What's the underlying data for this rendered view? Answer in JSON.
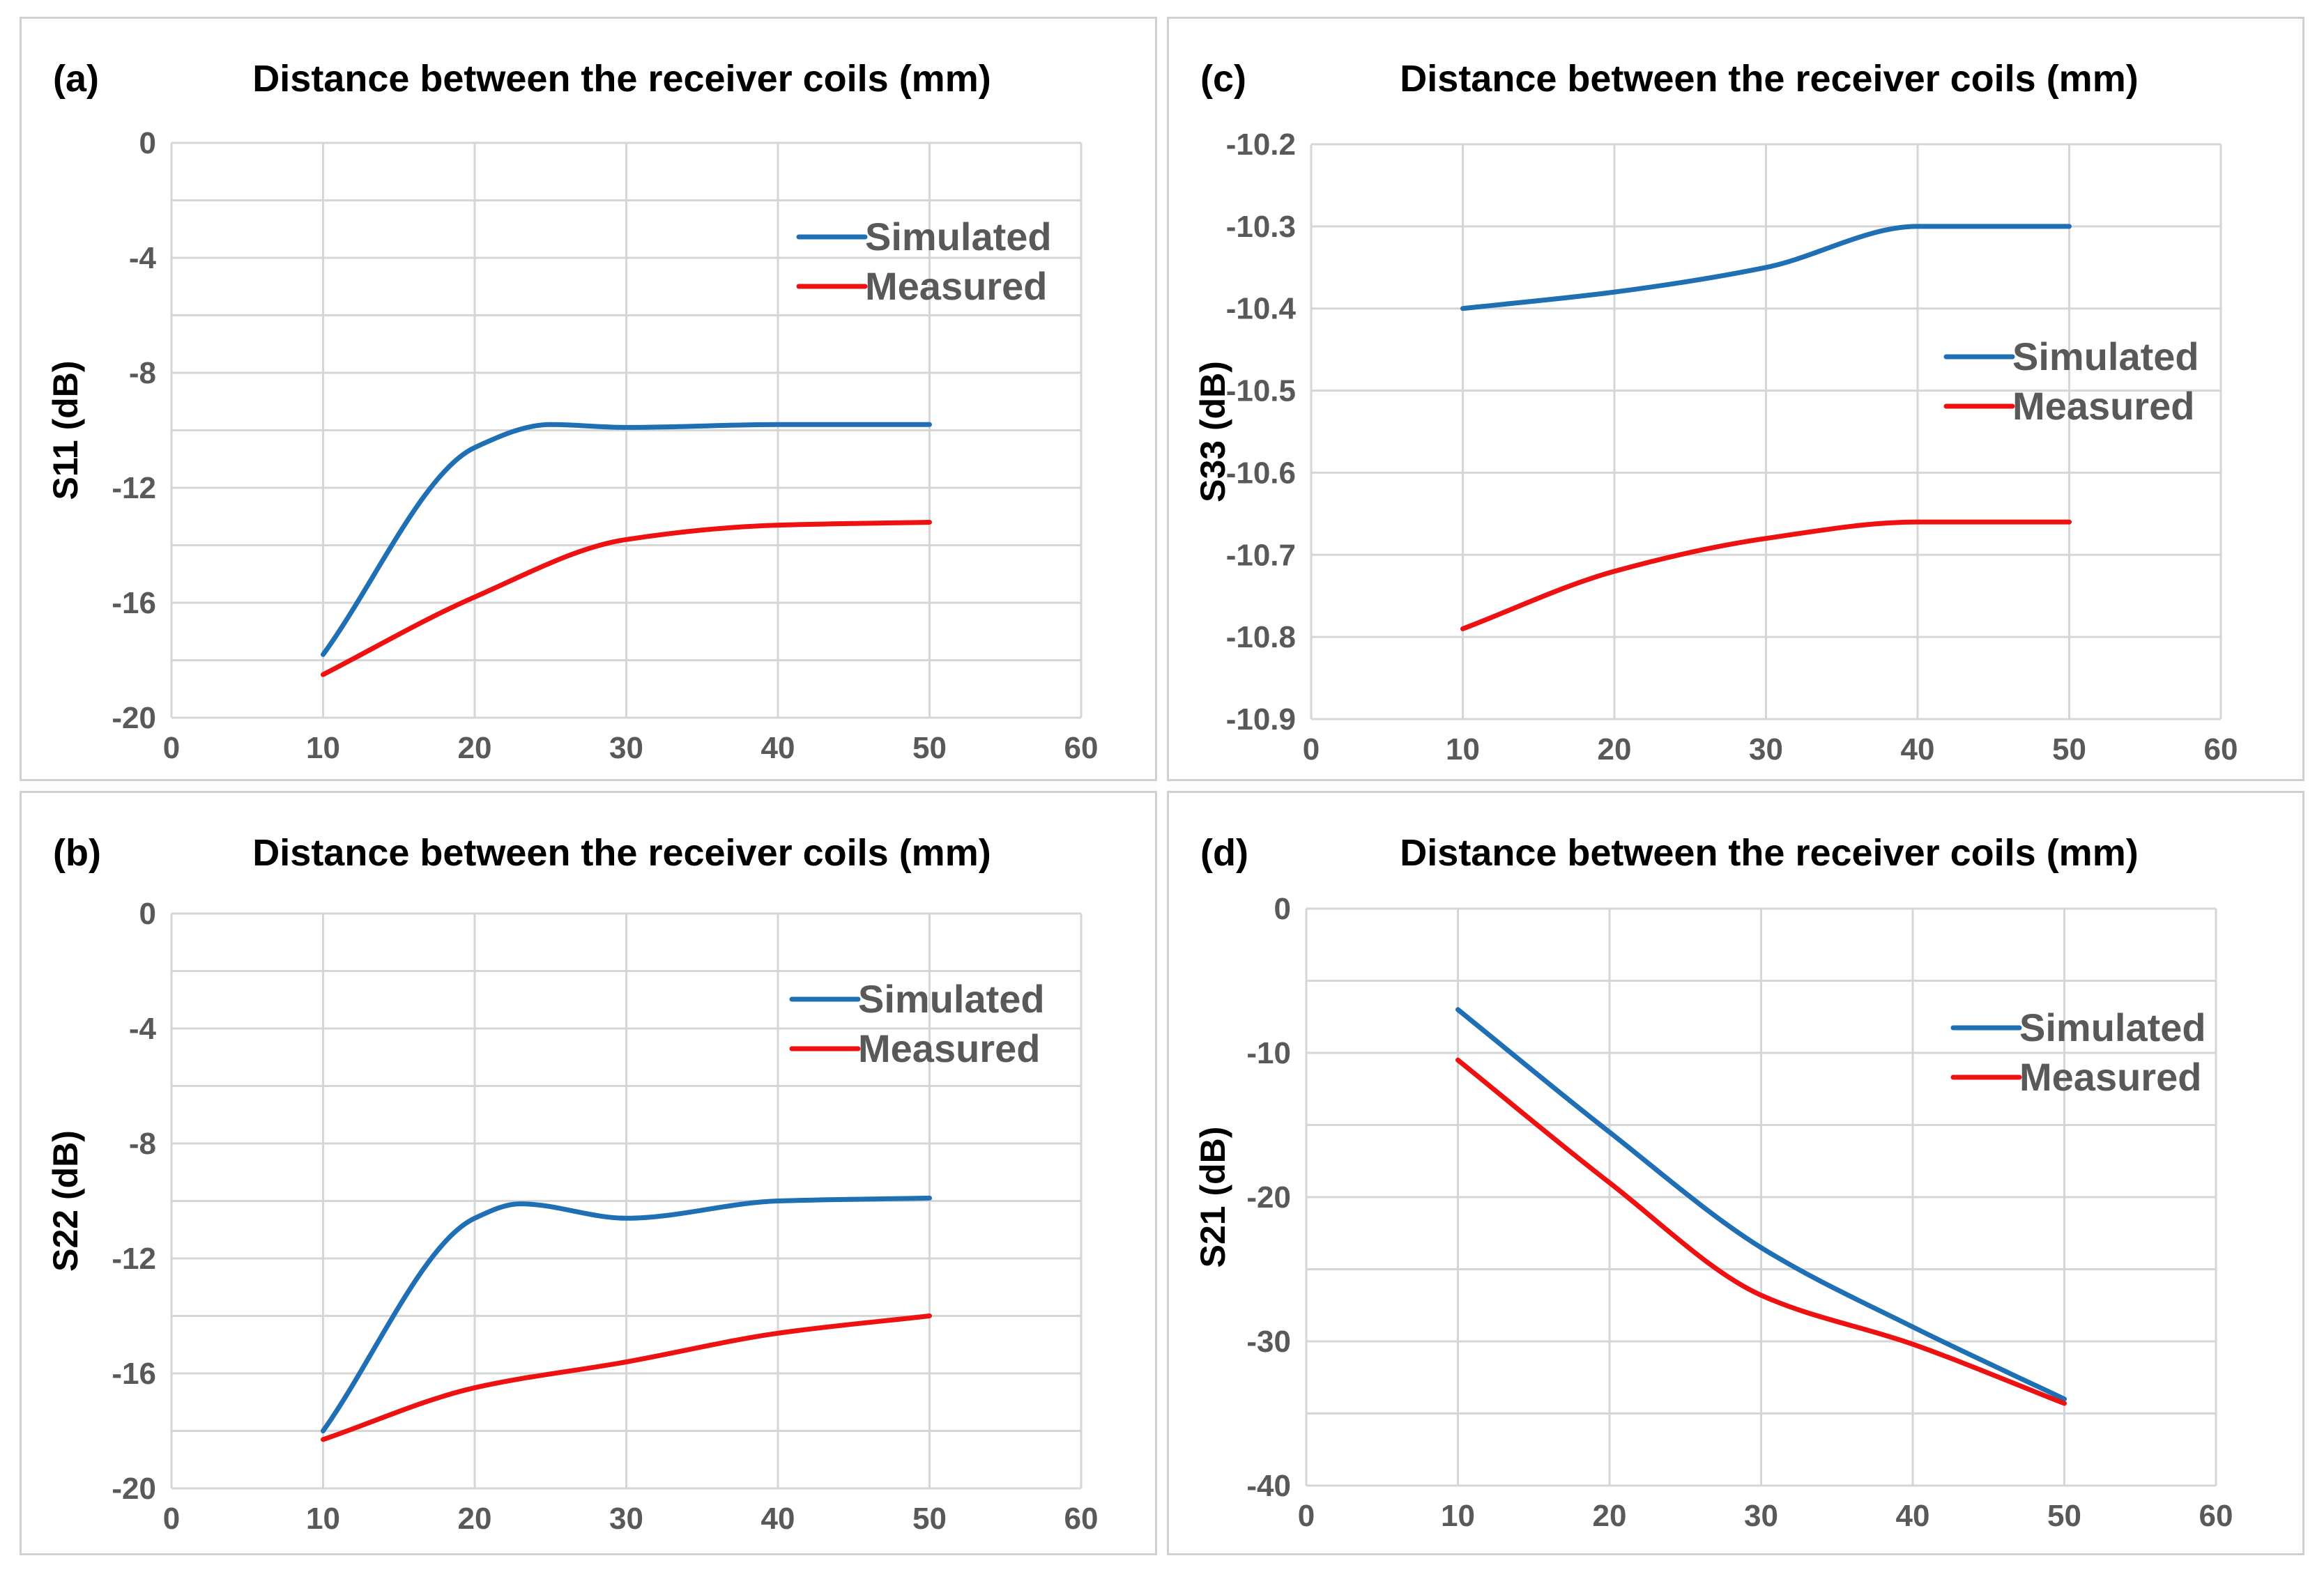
{
  "colors": {
    "simulated": "#1f6fb5",
    "measured": "#ee1111",
    "grid": "#d6d6d6"
  },
  "chart_data": [
    {
      "id": "a",
      "type": "line",
      "tag": "(a)",
      "title": "Distance between the receiver coils (mm)",
      "xlabel": "",
      "ylabel": "S11 (dB)",
      "xlim": [
        0,
        60
      ],
      "ylim": [
        -20,
        0
      ],
      "xticks": [
        0,
        10,
        20,
        30,
        40,
        50,
        60
      ],
      "yticks": [
        0,
        -4,
        -8,
        -12,
        -16,
        -20
      ],
      "grid_step": 2,
      "legend": "top-right",
      "series": [
        {
          "name": "Simulated",
          "x": [
            10,
            20,
            25,
            30,
            40,
            50
          ],
          "y": [
            -17.8,
            -10.6,
            -9.8,
            -9.9,
            -9.8,
            -9.8
          ]
        },
        {
          "name": "Measured",
          "x": [
            10,
            20,
            30,
            40,
            50
          ],
          "y": [
            -18.5,
            -15.8,
            -13.8,
            -13.3,
            -13.2
          ]
        }
      ]
    },
    {
      "id": "c",
      "type": "line",
      "tag": "(c)",
      "title": "Distance between the receiver coils (mm)",
      "xlabel": "",
      "ylabel": "S33 (dB)",
      "xlim": [
        0,
        60
      ],
      "ylim": [
        -10.9,
        -10.2
      ],
      "xticks": [
        0,
        10,
        20,
        30,
        40,
        50,
        60
      ],
      "yticks": [
        -10.2,
        -10.3,
        -10.4,
        -10.5,
        -10.6,
        -10.7,
        -10.8,
        -10.9
      ],
      "grid_step": 0.1,
      "legend": "right",
      "series": [
        {
          "name": "Simulated",
          "x": [
            10,
            20,
            30,
            40,
            50
          ],
          "y": [
            -10.4,
            -10.38,
            -10.35,
            -10.3,
            -10.3
          ]
        },
        {
          "name": "Measured",
          "x": [
            10,
            20,
            30,
            40,
            50
          ],
          "y": [
            -10.79,
            -10.72,
            -10.68,
            -10.66,
            -10.66
          ]
        }
      ]
    },
    {
      "id": "b",
      "type": "line",
      "tag": "(b)",
      "title": "Distance between the receiver coils (mm)",
      "xlabel": "",
      "ylabel": "S22 (dB)",
      "xlim": [
        0,
        60
      ],
      "ylim": [
        -20,
        0
      ],
      "xticks": [
        0,
        10,
        20,
        30,
        40,
        50,
        60
      ],
      "yticks": [
        0,
        -4,
        -8,
        -12,
        -16,
        -20
      ],
      "grid_step": 2,
      "legend": "top-right",
      "series": [
        {
          "name": "Simulated",
          "x": [
            10,
            20,
            23,
            30,
            40,
            50
          ],
          "y": [
            -18.0,
            -10.6,
            -10.1,
            -10.6,
            -10.0,
            -9.9
          ]
        },
        {
          "name": "Measured",
          "x": [
            10,
            20,
            30,
            40,
            50
          ],
          "y": [
            -18.3,
            -16.5,
            -15.6,
            -14.6,
            -14.0
          ]
        }
      ]
    },
    {
      "id": "d",
      "type": "line",
      "tag": "(d)",
      "title": "Distance between the receiver coils (mm)",
      "xlabel": "",
      "ylabel": "S21 (dB)",
      "xlim": [
        0,
        60
      ],
      "ylim": [
        -40,
        0
      ],
      "xticks": [
        0,
        10,
        20,
        30,
        40,
        50,
        60
      ],
      "yticks": [
        0,
        -10,
        -20,
        -30,
        -40
      ],
      "grid_step": 5,
      "legend": "top-right",
      "series": [
        {
          "name": "Simulated",
          "x": [
            10,
            20,
            30,
            40,
            50
          ],
          "y": [
            -7.0,
            -15.5,
            -23.5,
            -29.0,
            -34.0
          ]
        },
        {
          "name": "Measured",
          "x": [
            10,
            20,
            30,
            40,
            50
          ],
          "y": [
            -10.5,
            -19.0,
            -26.8,
            -30.2,
            -34.3
          ]
        }
      ]
    }
  ]
}
